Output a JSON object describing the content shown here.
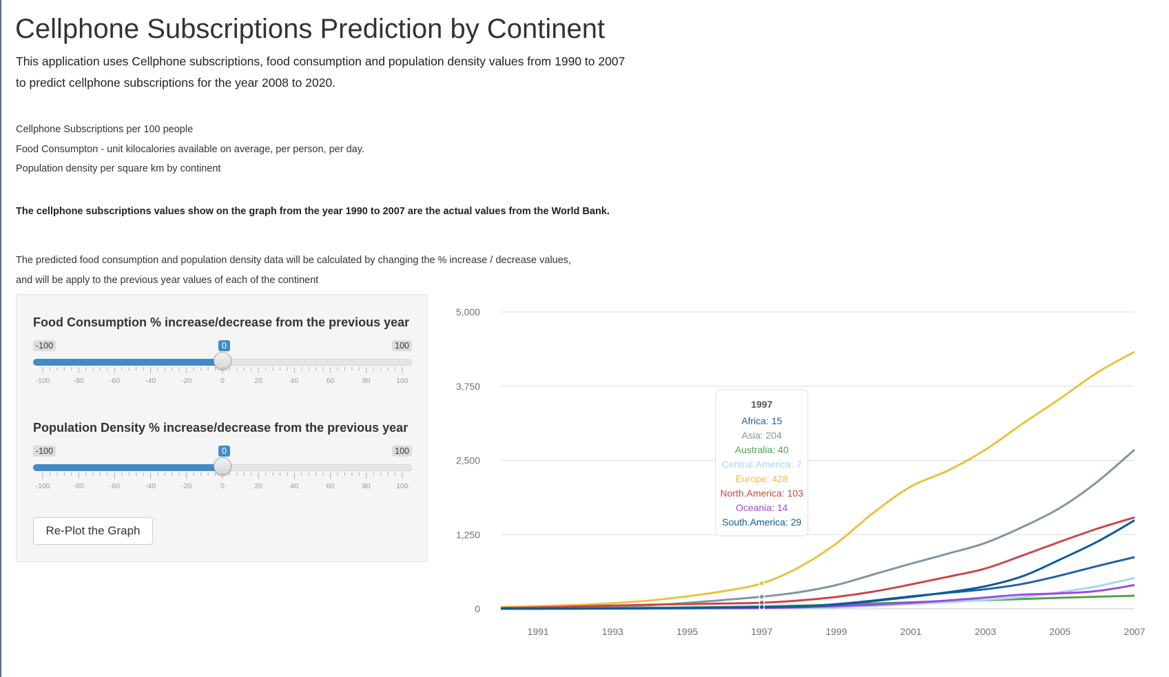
{
  "header": {
    "title": "Cellphone Subscriptions Prediction by Continent",
    "intro_line1": "This application uses Cellphone subscriptions, food consumption and population density values from 1990 to 2007",
    "intro_line2": "to predict cellphone subscriptions for the year 2008 to 2020."
  },
  "definitions": {
    "line1": "Cellphone Subscriptions per 100 people",
    "line2": "Food Consumpton - unit kilocalories available on average, per person, per day.",
    "line3": "Population density per square km by continent"
  },
  "bold_note": "The cellphone subscriptions values show on the graph from the year 1990 to 2007 are the actual values from the World Bank.",
  "description": {
    "line1": "The predicted food consumption and population density data will be calculated by changing the % increase / decrease values,",
    "line2": "and will be apply to the previous year values of each of the continent"
  },
  "controls": {
    "food": {
      "label": "Food Consumption % increase/decrease from the previous year",
      "min": -100,
      "max": 100,
      "value": 0,
      "min_label": "-100",
      "max_label": "100",
      "value_label": "0"
    },
    "population": {
      "label": "Population Density % increase/decrease from the previous year",
      "min": -100,
      "max": 100,
      "value": 0,
      "min_label": "-100",
      "max_label": "100",
      "value_label": "0"
    },
    "tick_labels": [
      "-100",
      "-80",
      "-60",
      "-40",
      "-20",
      "0",
      "20",
      "40",
      "60",
      "80",
      "100"
    ],
    "replot_label": "Re-Plot the Graph"
  },
  "chart_data": {
    "type": "line",
    "x": [
      1990,
      1991,
      1992,
      1993,
      1994,
      1995,
      1996,
      1997,
      1998,
      1999,
      2000,
      2001,
      2002,
      2003,
      2004,
      2005,
      2006,
      2007
    ],
    "xticks": [
      1991,
      1993,
      1995,
      1997,
      1999,
      2001,
      2003,
      2005,
      2007
    ],
    "ylim": [
      0,
      5000
    ],
    "yticks": [
      0,
      1250,
      2500,
      3750,
      5000
    ],
    "ytick_labels": [
      "0",
      "1,250",
      "2,500",
      "3,750",
      "5,000"
    ],
    "grid": true,
    "series": [
      {
        "name": "Africa",
        "color": "#1f5fa8",
        "values": [
          0,
          1,
          2,
          3,
          4,
          6,
          9,
          15,
          40,
          80,
          140,
          210,
          270,
          330,
          420,
          560,
          720,
          870
        ]
      },
      {
        "name": "Asia",
        "color": "#8096a6",
        "values": [
          10,
          15,
          25,
          40,
          60,
          100,
          150,
          204,
          280,
          400,
          580,
          760,
          930,
          1110,
          1380,
          1700,
          2140,
          2680
        ]
      },
      {
        "name": "Australia",
        "color": "#4ea24e",
        "values": [
          2,
          4,
          7,
          11,
          17,
          24,
          32,
          40,
          55,
          70,
          90,
          110,
          130,
          145,
          165,
          185,
          205,
          220
        ]
      },
      {
        "name": "Central.America",
        "color": "#a9d4f2",
        "values": [
          0,
          0,
          1,
          1,
          2,
          3,
          5,
          7,
          12,
          25,
          50,
          80,
          110,
          150,
          200,
          280,
          380,
          520
        ]
      },
      {
        "name": "Europe",
        "color": "#eac23e",
        "values": [
          30,
          45,
          65,
          95,
          140,
          210,
          300,
          428,
          700,
          1100,
          1620,
          2060,
          2330,
          2680,
          3120,
          3540,
          3980,
          4330
        ]
      },
      {
        "name": "North.America",
        "color": "#c8474a",
        "values": [
          15,
          25,
          40,
          55,
          70,
          80,
          90,
          103,
          140,
          200,
          290,
          410,
          540,
          680,
          900,
          1130,
          1350,
          1540
        ]
      },
      {
        "name": "Oceania",
        "color": "#9b4be0",
        "values": [
          1,
          2,
          3,
          5,
          7,
          9,
          11,
          14,
          25,
          45,
          70,
          100,
          140,
          190,
          240,
          260,
          300,
          400
        ]
      },
      {
        "name": "South.America",
        "color": "#0a5c9a",
        "values": [
          2,
          3,
          5,
          7,
          10,
          15,
          22,
          29,
          40,
          70,
          130,
          200,
          280,
          380,
          550,
          830,
          1130,
          1490
        ]
      }
    ],
    "tooltip": {
      "year": "1997",
      "rows": [
        "Africa: 15",
        "Asia: 204",
        "Australia: 40",
        "Central.America: 7",
        "Europe: 428",
        "North.America: 103",
        "Oceania: 14",
        "South.America: 29"
      ]
    }
  }
}
